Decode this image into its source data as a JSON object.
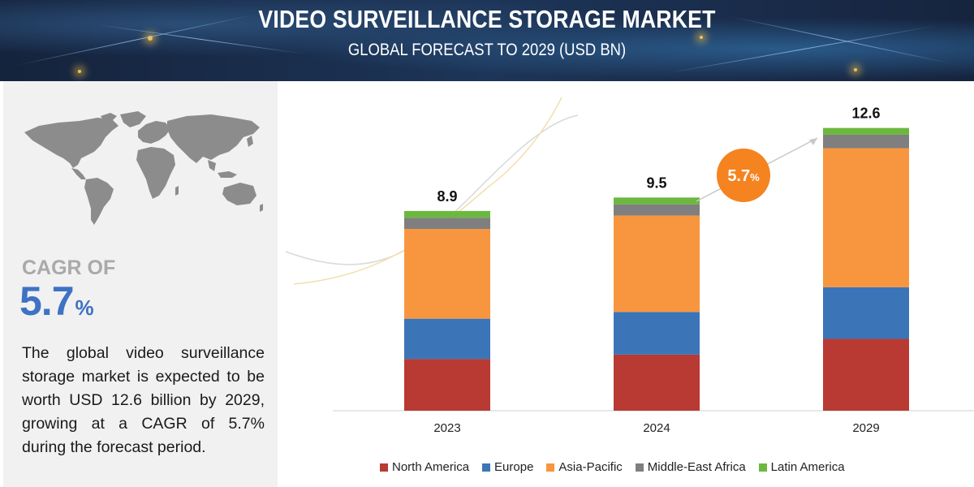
{
  "header": {
    "title": "VIDEO SURVEILLANCE STORAGE MARKET",
    "subtitle": "GLOBAL FORECAST TO 2029 (USD BN)"
  },
  "sidebar": {
    "cagr_label": "CAGR OF",
    "cagr_number": "5.7",
    "cagr_unit": "%",
    "description": "The global video surveillance storage market is expected to be worth USD 12.6 billion by 2029, growing at a CAGR of 5.7% during the forecast period."
  },
  "badge": {
    "number": "5.7",
    "unit": "%",
    "color": "#f5831f"
  },
  "colors": {
    "North America": "#b83a32",
    "Europe": "#3b75b8",
    "Asia-Pacific": "#f7963f",
    "Middle-East Africa": "#7f7f7f",
    "Latin America": "#6cb83f"
  },
  "chart_data": {
    "type": "bar",
    "stacked": true,
    "categories": [
      "2023",
      "2024",
      "2029"
    ],
    "totals": [
      "8.9",
      "9.5",
      "12.6"
    ],
    "series": [
      {
        "name": "North America",
        "values": [
          2.3,
          2.5,
          3.2
        ]
      },
      {
        "name": "Europe",
        "values": [
          1.8,
          1.9,
          2.3
        ]
      },
      {
        "name": "Asia-Pacific",
        "values": [
          4.0,
          4.3,
          6.2
        ]
      },
      {
        "name": "Middle-East Africa",
        "values": [
          0.5,
          0.5,
          0.6
        ]
      },
      {
        "name": "Latin America",
        "values": [
          0.3,
          0.3,
          0.3
        ]
      }
    ],
    "ylim": [
      0,
      13.6
    ],
    "legend": "bottom",
    "grid": false
  }
}
